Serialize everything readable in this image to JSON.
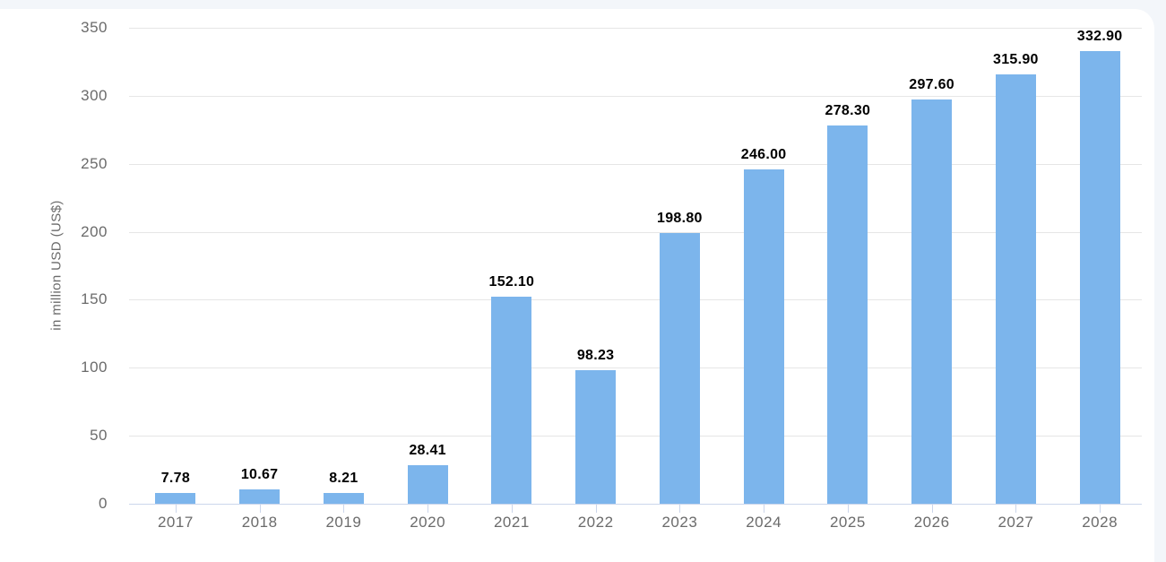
{
  "page": {
    "background_color": "#f3f6fa",
    "card_color": "#ffffff"
  },
  "chart_data": {
    "type": "bar",
    "title": "",
    "xlabel": "",
    "ylabel": "in million USD (US$)",
    "categories": [
      "2017",
      "2018",
      "2019",
      "2020",
      "2021",
      "2022",
      "2023",
      "2024",
      "2025",
      "2026",
      "2027",
      "2028"
    ],
    "values": [
      7.78,
      10.67,
      8.21,
      28.41,
      152.1,
      98.23,
      198.8,
      246.0,
      278.3,
      297.6,
      315.9,
      332.9
    ],
    "value_labels": [
      "7.78",
      "10.67",
      "8.21",
      "28.41",
      "152.10",
      "98.23",
      "198.80",
      "246.00",
      "278.30",
      "297.60",
      "315.90",
      "332.90"
    ],
    "ylim": [
      0,
      350
    ],
    "yticks": [
      0,
      50,
      100,
      150,
      200,
      250,
      300,
      350
    ],
    "grid": true,
    "legend_position": "none",
    "colors": {
      "bar": "#7cb5ec",
      "gridline": "#e6e6e6",
      "axis_line": "#ccd6eb",
      "tick": "#ccd6eb",
      "axis_text": "#6b6b6b",
      "value_label": "#000000"
    }
  }
}
